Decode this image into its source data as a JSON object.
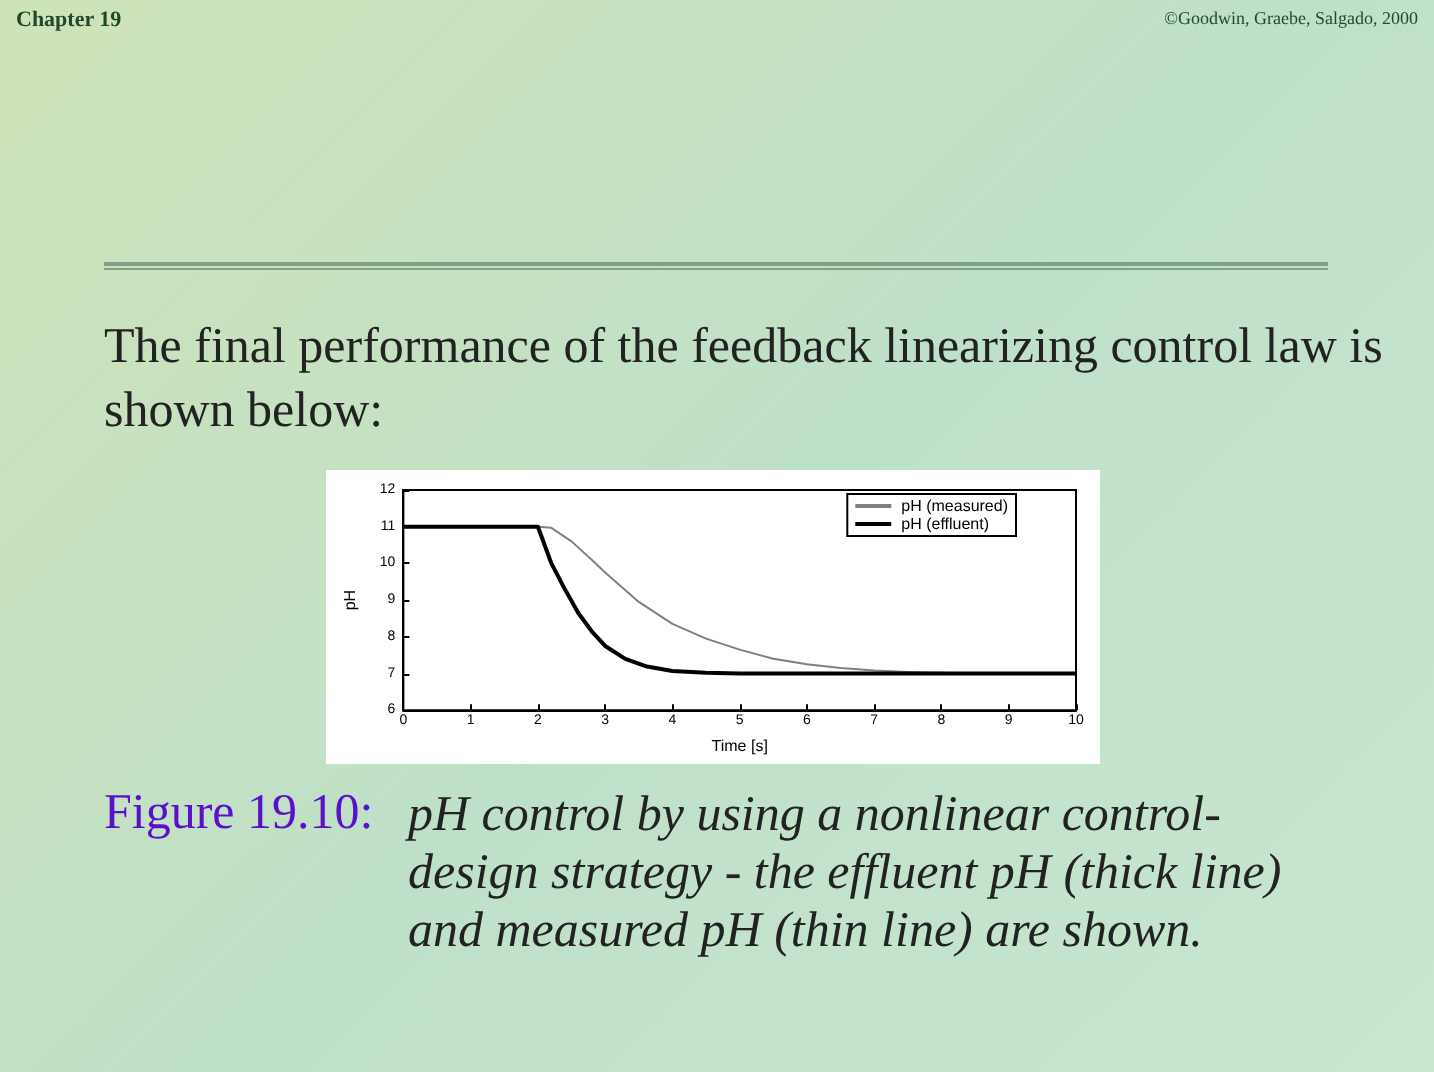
{
  "chart_data": {
    "type": "line",
    "title": "The final performance of the feedback linearizing control law is shown below:",
    "xlabel": "Time [s]",
    "ylabel": "pH",
    "annotations": [
      "Chapter 19",
      "©Goodwin, Graebe, Salgado, 2000",
      "Figure 19.10:",
      "pH control by using a nonlinear control-design strategy - the effluent pH (thick line) and measured pH (thin line) are shown."
    ],
    "series": [
      {
        "name": "pH (measured)",
        "color": "#808080",
        "x": [
          0,
          1,
          2,
          2.2,
          2.5,
          2.8,
          3,
          3.5,
          4,
          4.5,
          5,
          5.5,
          6,
          6.5,
          7,
          7.5,
          8,
          9,
          10
        ],
        "values": [
          11,
          11,
          11,
          10.97,
          10.6,
          10.1,
          9.75,
          8.95,
          8.35,
          7.95,
          7.65,
          7.4,
          7.25,
          7.15,
          7.08,
          7.04,
          7.02,
          7,
          7
        ]
      },
      {
        "name": "pH (effluent)",
        "color": "#000000",
        "x": [
          0,
          1,
          2,
          2.1,
          2.2,
          2.4,
          2.6,
          2.8,
          3,
          3.3,
          3.6,
          4,
          4.5,
          5,
          6,
          8,
          10
        ],
        "values": [
          11,
          11,
          11,
          10.5,
          10,
          9.3,
          8.65,
          8.15,
          7.75,
          7.4,
          7.2,
          7.07,
          7.02,
          7,
          7,
          7,
          7
        ]
      }
    ],
    "xlim": [
      0,
      10
    ],
    "xticks": [
      0,
      1,
      2,
      3,
      4,
      5,
      6,
      7,
      8,
      9,
      10
    ],
    "ylim": [
      6,
      12
    ],
    "yticks": [
      6,
      7,
      8,
      9,
      10,
      11,
      12
    ],
    "grid": false,
    "legend": "top right",
    "marker": "none",
    "line_style": "solid"
  }
}
